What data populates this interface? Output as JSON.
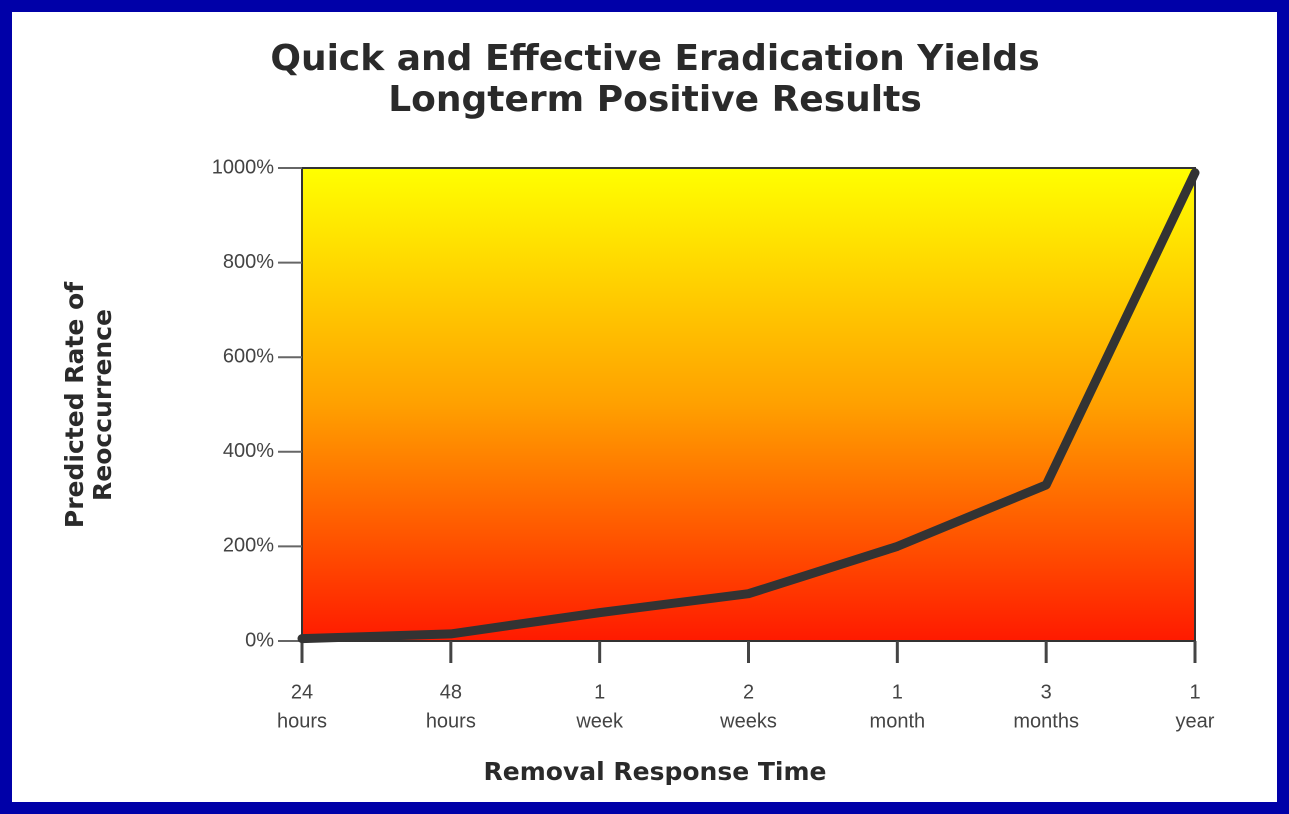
{
  "chart_data": {
    "type": "line",
    "title": [
      "Quick and Effective Eradication Yields",
      "Longterm Positive Results"
    ],
    "xlabel": "Removal Response Time",
    "ylabel": [
      "Predicted Rate of",
      "Reoccurrence"
    ],
    "categories": [
      [
        "24",
        "hours"
      ],
      [
        "48",
        "hours"
      ],
      [
        "1",
        "week"
      ],
      [
        "2",
        "weeks"
      ],
      [
        "1",
        "month"
      ],
      [
        "3",
        "months"
      ],
      [
        "1",
        "year"
      ]
    ],
    "series": [
      {
        "name": null,
        "color": "#333333",
        "values": [
          5,
          15,
          60,
          100,
          200,
          330,
          990
        ]
      }
    ],
    "ylim": [
      0,
      1000
    ],
    "yticks": [
      {
        "value": 0,
        "label": "0%"
      },
      {
        "value": 200,
        "label": "200%"
      },
      {
        "value": 400,
        "label": "400%"
      },
      {
        "value": 600,
        "label": "600%"
      },
      {
        "value": 800,
        "label": "800%"
      },
      {
        "value": 1000,
        "label": "1000%"
      }
    ]
  }
}
